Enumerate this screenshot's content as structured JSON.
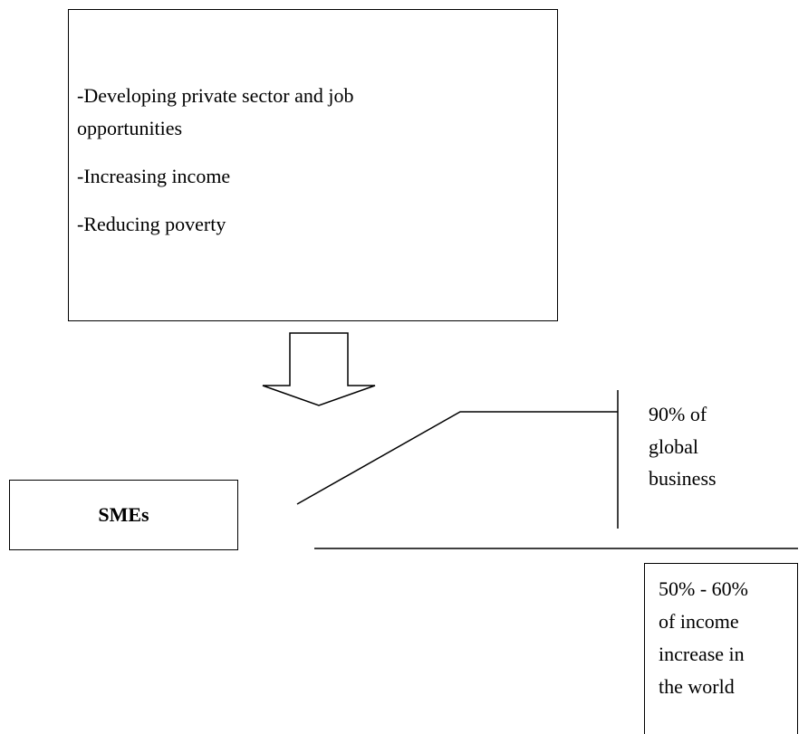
{
  "top_box": {
    "lines": [
      "-Developing private sector and job",
      "opportunities",
      "-Increasing income",
      "-Reducing poverty"
    ]
  },
  "sme_box": {
    "label": "SMEs"
  },
  "business_note": {
    "lines": [
      "90% of",
      "global",
      "business"
    ]
  },
  "income_box": {
    "lines": [
      "50% - 60%",
      "of income",
      "increase in",
      "the world"
    ]
  },
  "colors": {
    "stroke": "#000000",
    "background": "#ffffff"
  },
  "icons": {
    "down_arrow": "block-arrow-down-icon"
  }
}
